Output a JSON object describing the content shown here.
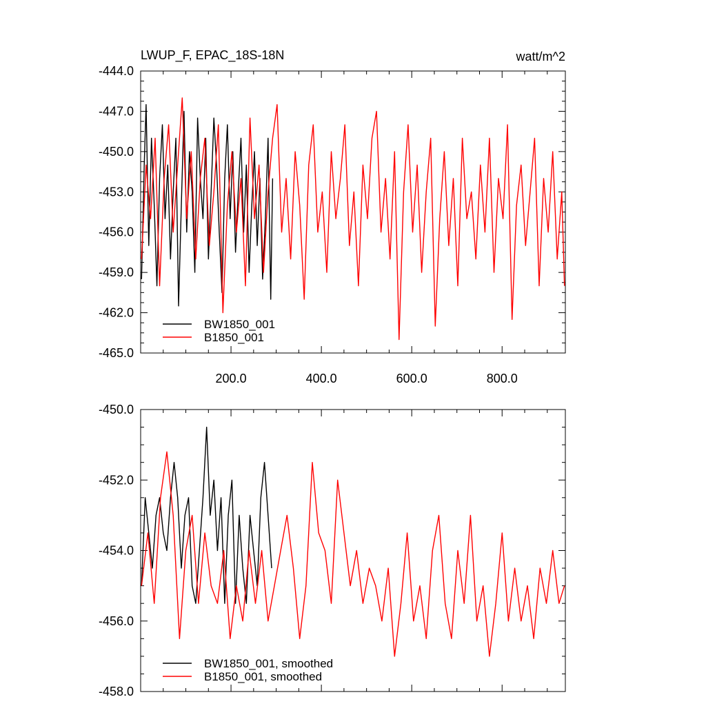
{
  "chart_data": [
    {
      "type": "line",
      "title": "LWUP_F, EPAC_18S-18N",
      "units": "watt/m^2",
      "xlim": [
        0,
        940
      ],
      "ylim": [
        -465,
        -444
      ],
      "x_ticks": [
        200,
        400,
        600,
        800
      ],
      "x_tick_labels": [
        "200.0",
        "400.0",
        "600.0",
        "800.0"
      ],
      "y_ticks": [
        -444,
        -447,
        -450,
        -453,
        -456,
        -459,
        -462,
        -465
      ],
      "y_tick_labels": [
        "-444.0",
        "-447.0",
        "-450.0",
        "-453.0",
        "-456.0",
        "-459.0",
        "-462.0",
        "-465.0"
      ],
      "legend_placement": "bottom-left",
      "series": [
        {
          "name": "BW1850_001",
          "color": "#000000",
          "x": [
            2,
            8,
            12,
            18,
            24,
            30,
            36,
            42,
            48,
            54,
            60,
            66,
            72,
            78,
            84,
            90,
            96,
            102,
            108,
            114,
            120,
            126,
            132,
            138,
            144,
            150,
            156,
            162,
            168,
            174,
            180,
            186,
            192,
            198,
            204,
            210,
            216,
            222,
            228,
            234,
            240,
            246,
            252,
            258,
            264,
            270,
            276,
            282,
            288,
            292
          ],
          "values": [
            -459.5,
            -451,
            -446.5,
            -457,
            -449,
            -454,
            -460,
            -452,
            -448,
            -455,
            -451,
            -458,
            -453,
            -449,
            -461.5,
            -454,
            -447,
            -456,
            -450,
            -453,
            -459,
            -447.5,
            -452,
            -455,
            -449,
            -458,
            -453,
            -447.5,
            -451,
            -456,
            -460.5,
            -452,
            -448,
            -455,
            -450,
            -457.5,
            -453,
            -449,
            -456,
            -451,
            -459,
            -454,
            -450,
            -457,
            -452,
            -459.5,
            -455,
            -449,
            -461,
            -452
          ]
        },
        {
          "name": "B1850_001",
          "color": "#ff0000",
          "x": [
            2,
            12,
            22,
            32,
            42,
            52,
            62,
            72,
            82,
            92,
            102,
            112,
            122,
            132,
            142,
            152,
            162,
            172,
            182,
            192,
            202,
            212,
            222,
            232,
            242,
            252,
            262,
            272,
            282,
            292,
            302,
            312,
            322,
            332,
            342,
            352,
            362,
            372,
            382,
            392,
            402,
            412,
            422,
            432,
            442,
            452,
            462,
            472,
            482,
            492,
            502,
            512,
            522,
            532,
            542,
            552,
            562,
            572,
            582,
            592,
            602,
            612,
            622,
            632,
            642,
            652,
            662,
            672,
            682,
            692,
            702,
            712,
            722,
            732,
            742,
            752,
            762,
            772,
            782,
            792,
            802,
            812,
            822,
            832,
            842,
            852,
            862,
            872,
            882,
            892,
            902,
            912,
            922,
            932,
            938
          ],
          "values": [
            -458,
            -451,
            -455,
            -449,
            -460,
            -452,
            -448,
            -456,
            -451,
            -446,
            -455,
            -450,
            -458,
            -452,
            -449,
            -457,
            -453,
            -448,
            -462,
            -454,
            -450,
            -456,
            -452,
            -460,
            -447.5,
            -455,
            -451,
            -459,
            -453,
            -449,
            -446.5,
            -456,
            -452,
            -458,
            -450,
            -454,
            -461,
            -451,
            -448,
            -456,
            -453,
            -459,
            -450,
            -455,
            -452,
            -448,
            -457,
            -453,
            -460,
            -451,
            -455,
            -449,
            -447,
            -456,
            -452,
            -458,
            -450,
            -464,
            -453,
            -448,
            -456,
            -451,
            -459,
            -453,
            -449,
            -463,
            -455,
            -450,
            -457,
            -452,
            -460,
            -449,
            -455,
            -453,
            -458,
            -451,
            -456,
            -449,
            -459,
            -452,
            -455,
            -448,
            -462.5,
            -454,
            -451,
            -457,
            -453,
            -449,
            -460,
            -452,
            -456,
            -450,
            -458,
            -453,
            -460
          ]
        }
      ]
    },
    {
      "type": "line",
      "title": "",
      "xlim": [
        0,
        940
      ],
      "ylim": [
        -458,
        -450
      ],
      "x_ticks": [
        200,
        400,
        600,
        800
      ],
      "y_ticks": [
        -450,
        -452,
        -454,
        -456,
        -458
      ],
      "y_tick_labels": [
        "-450.0",
        "-452.0",
        "-454.0",
        "-456.0",
        "-458.0"
      ],
      "legend_placement": "bottom-left",
      "series": [
        {
          "name": "BW1850_001, smoothed",
          "color": "#000000",
          "x": [
            2,
            10,
            18,
            26,
            34,
            42,
            50,
            58,
            66,
            74,
            82,
            90,
            98,
            106,
            114,
            122,
            130,
            138,
            146,
            154,
            162,
            170,
            178,
            186,
            194,
            202,
            210,
            218,
            226,
            234,
            242,
            250,
            258,
            266,
            274,
            282,
            290
          ],
          "values": [
            -455,
            -452.5,
            -453.5,
            -454.5,
            -453,
            -452.5,
            -453.5,
            -454,
            -452.5,
            -451.5,
            -452.5,
            -454.5,
            -453,
            -452.5,
            -455,
            -455.5,
            -454,
            -452.5,
            -450.5,
            -453,
            -452,
            -454,
            -452.5,
            -455.5,
            -453,
            -452,
            -455.5,
            -453,
            -454.5,
            -455.5,
            -453,
            -454,
            -455,
            -452.5,
            -451.5,
            -453,
            -454.5
          ]
        },
        {
          "name": "B1850_001, smoothed",
          "color": "#ff0000",
          "x": [
            2,
            16,
            30,
            44,
            58,
            72,
            86,
            100,
            114,
            128,
            142,
            156,
            170,
            184,
            198,
            212,
            226,
            240,
            254,
            268,
            282,
            296,
            310,
            324,
            338,
            352,
            366,
            380,
            394,
            408,
            422,
            436,
            450,
            464,
            478,
            492,
            506,
            520,
            534,
            548,
            562,
            576,
            590,
            604,
            618,
            632,
            646,
            660,
            674,
            688,
            702,
            716,
            730,
            744,
            758,
            772,
            786,
            800,
            814,
            828,
            842,
            856,
            870,
            884,
            898,
            912,
            926,
            938
          ],
          "values": [
            -455,
            -453.5,
            -455.5,
            -452.5,
            -451.2,
            -453,
            -456.5,
            -454,
            -453,
            -455.5,
            -453.5,
            -455,
            -455.5,
            -454,
            -456.5,
            -455,
            -456,
            -454,
            -455.5,
            -454,
            -456,
            -455,
            -454,
            -453,
            -454.5,
            -456.5,
            -455,
            -451.5,
            -453.5,
            -454,
            -455.5,
            -452,
            -453.5,
            -455,
            -454,
            -455.5,
            -454.5,
            -455,
            -456,
            -454.5,
            -457,
            -455.5,
            -453.5,
            -456,
            -455,
            -456.5,
            -454,
            -453,
            -455.5,
            -456.5,
            -454,
            -455.5,
            -453,
            -456,
            -455,
            -457,
            -455.5,
            -453.5,
            -456,
            -454.5,
            -456,
            -455,
            -456.5,
            -454.5,
            -455.5,
            -454,
            -455.5,
            -455
          ]
        }
      ]
    }
  ]
}
